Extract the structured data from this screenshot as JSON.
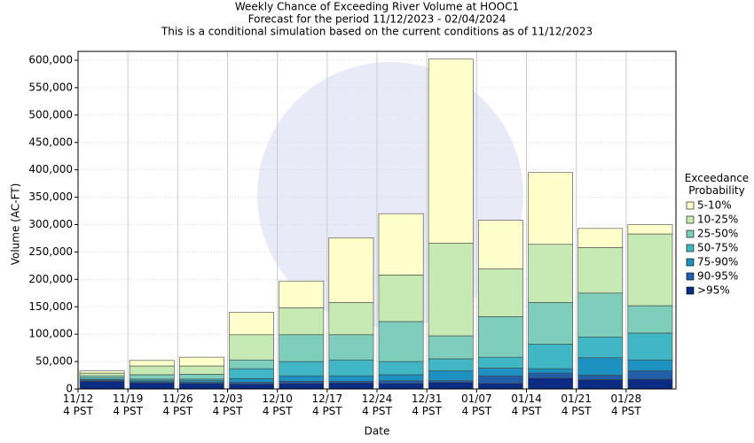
{
  "chart_data": {
    "type": "stacked_bar",
    "title": "Weekly Chance of Exceeding River Volume at HOOC1",
    "subtitle": "Forecast for the period 11/12/2023 - 02/04/2024",
    "subtitle2": "This is a conditional simulation based on the current conditions as of 11/12/2023",
    "xlabel": "Date",
    "ylabel": "Volume (AC-FT)",
    "legend_title": "Exceedance\nProbability",
    "categories": [
      "11/12\n4 PST",
      "11/19\n4 PST",
      "11/26\n4 PST",
      "12/03\n4 PST",
      "12/10\n4 PST",
      "12/17\n4 PST",
      "12/24\n4 PST",
      "12/31\n4 PST",
      "01/07\n4 PST",
      "01/14\n4 PST",
      "01/21\n4 PST",
      "01/28\n4 PST"
    ],
    "series": [
      {
        "name": ">95%",
        "color": "#0c2c84",
        "values": [
          14000,
          11000,
          10000,
          9000,
          10000,
          11000,
          10000,
          12000,
          10000,
          20000,
          17000,
          18000
        ]
      },
      {
        "name": "90-95%",
        "color": "#225ea8",
        "values": [
          2000,
          2000,
          2000,
          3000,
          4000,
          3000,
          5000,
          3000,
          14000,
          9000,
          8000,
          15000
        ]
      },
      {
        "name": "75-90%",
        "color": "#1d91c0",
        "values": [
          1000,
          2000,
          3000,
          7000,
          10000,
          10000,
          11000,
          18000,
          14000,
          8000,
          32000,
          20000
        ]
      },
      {
        "name": "50-75%",
        "color": "#41b6c4",
        "values": [
          3000,
          3000,
          3000,
          18000,
          26000,
          29000,
          24000,
          22000,
          20000,
          45000,
          38000,
          49000
        ]
      },
      {
        "name": "25-50%",
        "color": "#7fcdbb",
        "values": [
          4000,
          8000,
          9000,
          16000,
          49000,
          46000,
          73000,
          42000,
          74000,
          76000,
          80000,
          50000
        ]
      },
      {
        "name": "10-25%",
        "color": "#c7e9b4",
        "values": [
          5000,
          16000,
          15000,
          46000,
          49000,
          59000,
          85000,
          169000,
          87000,
          106000,
          83000,
          131000
        ]
      },
      {
        "name": "5-10%",
        "color": "#ffffcc",
        "values": [
          4000,
          10000,
          16000,
          41000,
          49000,
          118000,
          112000,
          336000,
          89000,
          131000,
          35000,
          17000
        ]
      }
    ],
    "ylim": [
      0,
      600000
    ],
    "yticks": [
      0,
      {
        "value": 50000,
        "label": "50,000"
      },
      {
        "value": 100000,
        "label": "100,000"
      },
      {
        "value": 150000,
        "label": "150,000"
      },
      {
        "value": 200000,
        "label": "200,000"
      },
      {
        "value": 250000,
        "label": "250,000"
      },
      {
        "value": 300000,
        "label": "300,000"
      },
      {
        "value": 350000,
        "label": "350,000"
      },
      {
        "value": 400000,
        "label": "400,000"
      },
      {
        "value": 450000,
        "label": "450,000"
      },
      {
        "value": 500000,
        "label": "500,000"
      },
      {
        "value": 550000,
        "label": "550,000"
      },
      {
        "value": 600000,
        "label": "600,000"
      }
    ],
    "grid": true,
    "legend": "right"
  }
}
